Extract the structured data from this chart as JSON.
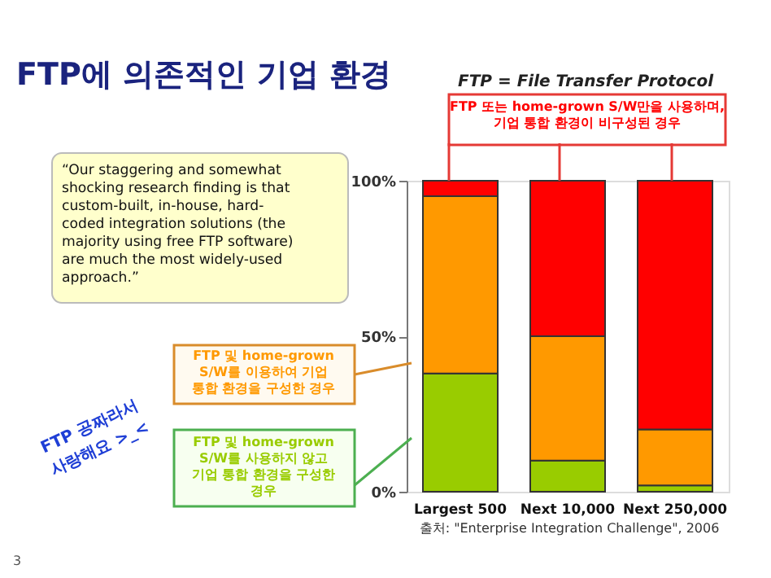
{
  "chart_data": {
    "type": "bar",
    "stacked": true,
    "title": "FTP에 의존적인 기업 환경",
    "subtitle": "FTP = File Transfer Protocol",
    "categories": [
      "Largest 500",
      "Next 10,000",
      "Next 250,000"
    ],
    "series": [
      {
        "name": "FTP 및 home-grown\nS/W를 사용하지 않고\n기업 통합 환경을 구성한\n경우",
        "color": "#99cc00",
        "values": [
          38,
          10,
          2
        ]
      },
      {
        "name": "FTP 및 home-grown\nS/W를 이용하여 기업\n통합 환경을 구성한 경우",
        "color": "#ff9900",
        "values": [
          57,
          40,
          18
        ]
      },
      {
        "name": "FTP 또는 home-grown S/W만을 사용하며,\n기업 통합 환경이 비구성된 경우",
        "color": "#ff0000",
        "values": [
          5,
          50,
          80
        ]
      }
    ],
    "ylim": [
      0,
      100
    ],
    "yticks": [
      {
        "value": 0,
        "label": "0%"
      },
      {
        "value": 50,
        "label": "50%"
      },
      {
        "value": 100,
        "label": "100%"
      }
    ],
    "grid": false,
    "legend": "left",
    "annotations": [
      "“Our staggering and somewhat\nshocking research finding is that\ncustom-built, in-house, hard-\ncoded integration solutions (the\nmajority using free FTP software)\nare much the most widely-used\napproach.”",
      "FTP 공짜라서\n사랑해요 >_<",
      "출처: \"Enterprise Integration Challenge\", 2006",
      "3"
    ]
  }
}
